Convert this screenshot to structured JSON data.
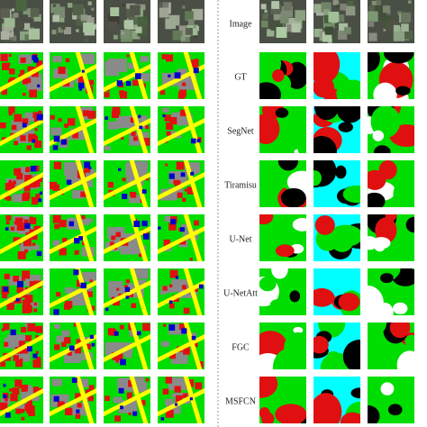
{
  "row_labels": [
    "Image",
    "GT",
    "SegNet",
    "Tiramisu",
    "U-Net",
    "U-NetAtt",
    "FGC",
    "MSFCN"
  ]
}
